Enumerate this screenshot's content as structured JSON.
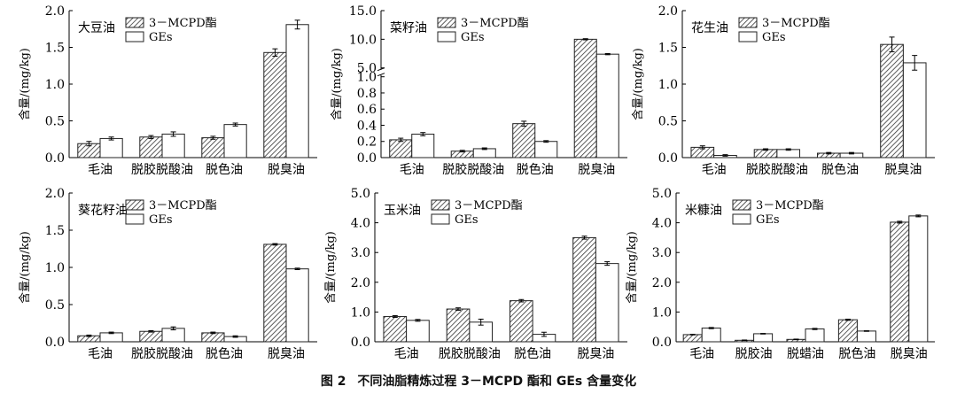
{
  "caption": {
    "fig_no": "图 2",
    "text": "不同油脂精炼过程 3－MCPD 酯和 GEs 含量变化"
  },
  "palette": {
    "hatch": "#333333",
    "bar_edge": "#222222",
    "open_fill": "#ffffff"
  },
  "chart_data": [
    {
      "type": "bar",
      "title": "大豆油",
      "ylabel": "含量/(mg/kg)",
      "ylim": [
        0,
        2.0
      ],
      "yticks": [
        "0.0",
        "0.5",
        "1.0",
        "1.5",
        "2.0"
      ],
      "categories": [
        "毛油",
        "脱胶脱酸油",
        "脱色油",
        "脱臭油"
      ],
      "series": [
        {
          "name": "3－MCPD酯",
          "pattern": "hatched",
          "values": [
            0.19,
            0.28,
            0.27,
            1.43
          ],
          "errors": [
            0.03,
            0.02,
            0.02,
            0.05
          ]
        },
        {
          "name": "GEs",
          "pattern": "open",
          "values": [
            0.26,
            0.32,
            0.45,
            1.81
          ],
          "errors": [
            0.02,
            0.03,
            0.02,
            0.06
          ]
        }
      ],
      "legend": "top-left",
      "grid": false
    },
    {
      "type": "bar",
      "title": "菜籽油",
      "ylabel": "含量/(mg/kg)",
      "scale": "broken",
      "ylim": [
        0,
        15.0
      ],
      "axis_break": [
        1.0,
        5.0
      ],
      "yticks": [
        "0.0",
        "0.2",
        "0.4",
        "0.6",
        "0.8",
        "1.0",
        "5.0",
        "10.0",
        "15.0"
      ],
      "categories": [
        "毛油",
        "脱胶脱酸油",
        "脱色油",
        "脱臭油"
      ],
      "series": [
        {
          "name": "3－MCPD酯",
          "pattern": "hatched",
          "values": [
            0.22,
            0.08,
            0.42,
            10.0
          ],
          "errors": [
            0.02,
            0.01,
            0.03,
            0.1
          ]
        },
        {
          "name": "GEs",
          "pattern": "open",
          "values": [
            0.29,
            0.11,
            0.2,
            7.4
          ],
          "errors": [
            0.02,
            0.01,
            0.01,
            0.1
          ]
        }
      ],
      "legend": "top-left",
      "grid": false
    },
    {
      "type": "bar",
      "title": "花生油",
      "ylabel": "含量/(mg/kg)",
      "ylim": [
        0,
        2.0
      ],
      "yticks": [
        "0.0",
        "0.5",
        "1.0",
        "1.5",
        "2.0"
      ],
      "categories": [
        "毛油",
        "脱胶脱酸油",
        "脱色油",
        "脱臭油"
      ],
      "series": [
        {
          "name": "3－MCPD酯",
          "pattern": "hatched",
          "values": [
            0.14,
            0.11,
            0.06,
            1.54
          ],
          "errors": [
            0.02,
            0.01,
            0.01,
            0.1
          ]
        },
        {
          "name": "GEs",
          "pattern": "open",
          "values": [
            0.03,
            0.11,
            0.06,
            1.29
          ],
          "errors": [
            0.01,
            0.01,
            0.01,
            0.1
          ]
        }
      ],
      "legend": "top-left",
      "grid": false
    },
    {
      "type": "bar",
      "title": "葵花籽油",
      "ylabel": "含量/(mg/kg)",
      "ylim": [
        0,
        2.0
      ],
      "yticks": [
        "0.0",
        "0.5",
        "1.0",
        "1.5",
        "2.0"
      ],
      "categories": [
        "毛油",
        "脱胶脱酸油",
        "脱色油",
        "脱臭油"
      ],
      "series": [
        {
          "name": "3－MCPD酯",
          "pattern": "hatched",
          "values": [
            0.08,
            0.14,
            0.12,
            1.31
          ],
          "errors": [
            0.01,
            0.01,
            0.01,
            0.01
          ]
        },
        {
          "name": "GEs",
          "pattern": "open",
          "values": [
            0.12,
            0.18,
            0.07,
            0.98
          ],
          "errors": [
            0.01,
            0.02,
            0.01,
            0.01
          ]
        }
      ],
      "legend": "top-left",
      "grid": false
    },
    {
      "type": "bar",
      "title": "玉米油",
      "ylabel": "含量/(mg/kg)",
      "ylim": [
        0,
        5.0
      ],
      "yticks": [
        "0.0",
        "1.0",
        "2.0",
        "3.0",
        "4.0",
        "5.0"
      ],
      "categories": [
        "毛油",
        "脱胶脱酸油",
        "脱色油",
        "脱臭油"
      ],
      "series": [
        {
          "name": "3－MCPD酯",
          "pattern": "hatched",
          "values": [
            0.85,
            1.1,
            1.38,
            3.5
          ],
          "errors": [
            0.03,
            0.04,
            0.04,
            0.05
          ]
        },
        {
          "name": "GEs",
          "pattern": "open",
          "values": [
            0.72,
            0.66,
            0.25,
            2.63
          ],
          "errors": [
            0.03,
            0.1,
            0.07,
            0.06
          ]
        }
      ],
      "legend": "top-left",
      "grid": false
    },
    {
      "type": "bar",
      "title": "米糠油",
      "ylabel": "含量/(mg/kg)",
      "ylim": [
        0,
        5.0
      ],
      "yticks": [
        "0.0",
        "1.0",
        "2.0",
        "3.0",
        "4.0",
        "5.0"
      ],
      "categories": [
        "毛油",
        "脱胶油",
        "脱蜡油",
        "脱色油",
        "脱臭油"
      ],
      "series": [
        {
          "name": "3－MCPD酯",
          "pattern": "hatched",
          "values": [
            0.24,
            0.05,
            0.08,
            0.74,
            4.02
          ],
          "errors": [
            0.01,
            0.01,
            0.01,
            0.02,
            0.03
          ]
        },
        {
          "name": "GEs",
          "pattern": "open",
          "values": [
            0.46,
            0.27,
            0.43,
            0.36,
            4.23
          ],
          "errors": [
            0.02,
            0.01,
            0.02,
            0.01,
            0.03
          ]
        }
      ],
      "legend": "top-left",
      "grid": false
    }
  ]
}
